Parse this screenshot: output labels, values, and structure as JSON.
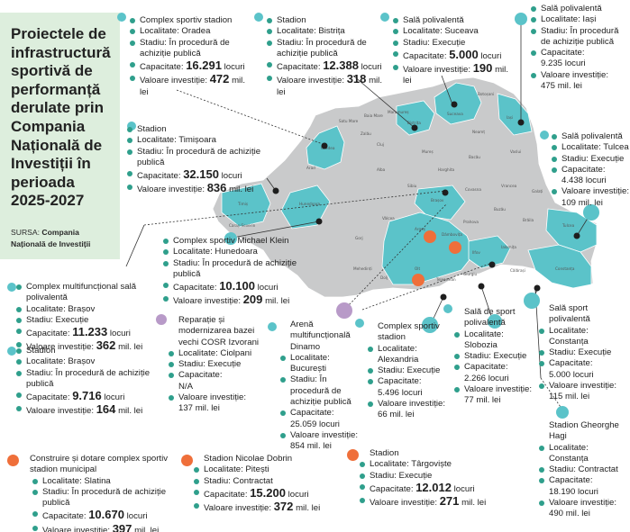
{
  "title": "Proiectele de infrastructură sportivă de performanță derulate prin Compania Națională de Investiții în perioada 2025-2027",
  "source_label": "SURSA:",
  "source_value": "Compania Națională de Investiții",
  "labels": {
    "localitate": "Localitate:",
    "stadiu": "Stadiu:",
    "capacitate": "Capacitate:",
    "valoare": "Valoare investiție:",
    "locuri": "locuri",
    "mil_lei": "mil. lei"
  },
  "colors": {
    "teal": "#5bc3c9",
    "orange": "#ef6f3a",
    "purple": "#b89ac8",
    "map_gray": "#c9cacb",
    "panel_green": "#ddeedd"
  },
  "projects": {
    "oradea": {
      "name": "Complex sportiv stadion",
      "localitate": "Oradea",
      "stadiu": "În procedură de achiziție publică",
      "capacitate": "16.291",
      "valoare": "472"
    },
    "bistrita": {
      "name": "Stadion",
      "localitate": "Bistrița",
      "stadiu": "În procedură de achiziție publică",
      "capacitate": "12.388",
      "valoare": "318"
    },
    "suceava": {
      "name": "Sală polivalentă",
      "localitate": "Suceava",
      "stadiu": "Execuție",
      "capacitate": "5.000",
      "valoare": "190"
    },
    "iasi": {
      "name": "Sală polivalentă",
      "localitate": "Iași",
      "stadiu": "În procedură de achiziție publică",
      "capacitate": "9.235",
      "valoare": "475"
    },
    "timisoara": {
      "name": "Stadion",
      "localitate": "Timișoara",
      "stadiu": "În procedură de achiziție publică",
      "capacitate": "32.150",
      "valoare": "836"
    },
    "tulcea": {
      "name": "Sală polivalentă",
      "localitate": "Tulcea",
      "stadiu": "Execuție",
      "capacitate": "4.438",
      "valoare": "109"
    },
    "hunedoara": {
      "name": "Complex sportiv Michael Klein",
      "localitate": "Hunedoara",
      "stadiu": "În procedură de achiziție publică",
      "capacitate": "10.100",
      "valoare": "209"
    },
    "brasov_sala": {
      "name": "Complex multifuncțional sală polivalentă",
      "localitate": "Brașov",
      "stadiu": "Execuție",
      "capacitate": "11.233",
      "valoare": "362"
    },
    "brasov_stadion": {
      "name": "Stadion",
      "localitate": "Brașov",
      "stadiu": "În procedură de achiziție publică",
      "capacitate": "9.716",
      "valoare": "164"
    },
    "izvorani": {
      "name": "Reparație și modernizarea bazei vechi COSR Izvorani",
      "localitate": "Ciolpani",
      "stadiu": "Execuție",
      "capacitate": "N/A",
      "valoare": "137"
    },
    "dinamo": {
      "name": "Arenă multifuncțională Dinamo",
      "localitate": "București",
      "stadiu": "În procedură de achiziție publică",
      "capacitate": "25.059",
      "valoare": "854"
    },
    "alexandria": {
      "name": "Complex sportiv stadion",
      "localitate": "Alexandria",
      "stadiu": "Execuție",
      "capacitate": "5.496",
      "valoare": "66"
    },
    "slobozia": {
      "name": "Sală de sport polivalentă",
      "localitate": "Slobozia",
      "stadiu": "Execuție",
      "capacitate": "2.266",
      "valoare": "77"
    },
    "constanta_sala": {
      "name": "Sală sport polivalentă",
      "localitate": "Constanța",
      "stadiu": "Execuție",
      "capacitate": "5.000",
      "valoare": "115"
    },
    "constanta_hagi": {
      "name": "Stadion Gheorghe Hagi",
      "localitate": "Constanța",
      "stadiu": "Contractat",
      "capacitate": "18.190",
      "valoare": "490"
    },
    "slatina": {
      "name": "Construire și dotare complex sportiv stadion municipal",
      "localitate": "Slatina",
      "stadiu": "În procedură de achiziție publică",
      "capacitate": "10.670",
      "valoare": "397"
    },
    "pitesti": {
      "name": "Stadion Nicolae Dobrin",
      "localitate": "Pitești",
      "stadiu": "Contractat",
      "capacitate": "15.200",
      "valoare": "372"
    },
    "targoviste": {
      "name": "Stadion",
      "localitate": "Târgoviște",
      "stadiu": "Execuție",
      "capacitate": "12.012",
      "valoare": "271"
    }
  },
  "map_cities": [
    "Satu Mare",
    "Baia Mare",
    "Maramureș",
    "Botoșani",
    "Suceava",
    "Iași",
    "Zalău",
    "Bistrița",
    "Neamț",
    "Oradea",
    "Cluj",
    "Mureș",
    "Bacău",
    "Vaslui",
    "Arad",
    "Alba",
    "Harghita",
    "Covasna",
    "Vrancea",
    "Galați",
    "Tulcea",
    "Timiș",
    "Sibiu",
    "Brașov",
    "Buzău",
    "Brăila",
    "Caraș-Severin",
    "Hunedoara",
    "Vâlcea",
    "Prahova",
    "Mehedinți",
    "Gorj",
    "Argeș",
    "Dâmbovița",
    "Ialomița",
    "Constanța",
    "Dolj",
    "Olt",
    "Teleorman",
    "Giurgiu",
    "Călărași",
    "Ilfov"
  ]
}
